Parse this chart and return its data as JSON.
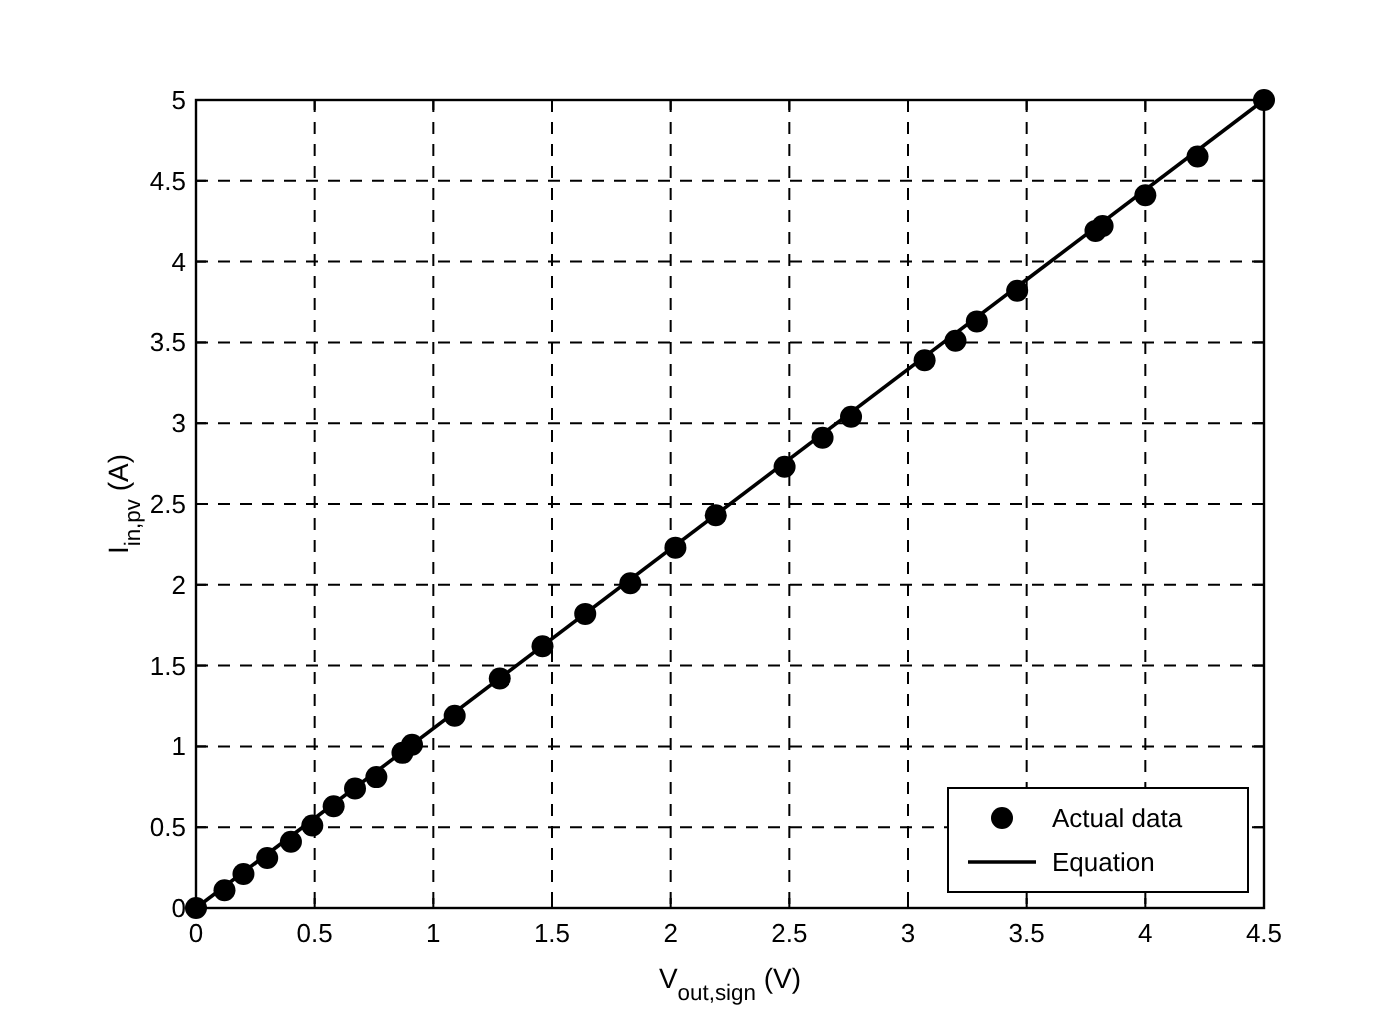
{
  "chart_data": {
    "type": "scatter",
    "xlabel": "V$_{out,sign}$ (V)",
    "ylabel": "I$_{in,pv}$ (A)",
    "xlim": [
      0,
      4.5
    ],
    "ylim": [
      0,
      5
    ],
    "xticks": [
      0,
      0.5,
      1,
      1.5,
      2,
      2.5,
      3,
      3.5,
      4,
      4.5
    ],
    "yticks": [
      0,
      0.5,
      1,
      1.5,
      2,
      2.5,
      3,
      3.5,
      4,
      4.5,
      5
    ],
    "grid": true,
    "legend": "bottom right",
    "series": [
      {
        "name": "Actual data",
        "marker": "circle",
        "color": "#000000",
        "x": [
          0,
          0.12,
          0.2,
          0.3,
          0.4,
          0.49,
          0.58,
          0.67,
          0.76,
          0.87,
          0.91,
          1.09,
          1.28,
          1.46,
          1.64,
          1.83,
          2.02,
          2.19,
          2.48,
          2.64,
          2.76,
          3.07,
          3.2,
          3.29,
          3.46,
          3.79,
          3.82,
          4,
          4.22,
          4.5
        ],
        "values": [
          0,
          0.11,
          0.21,
          0.31,
          0.41,
          0.51,
          0.63,
          0.74,
          0.81,
          0.96,
          1.01,
          1.19,
          1.42,
          1.62,
          1.82,
          2.01,
          2.23,
          2.43,
          2.73,
          2.91,
          3.04,
          3.39,
          3.51,
          3.63,
          3.82,
          4.19,
          4.22,
          4.41,
          4.65,
          5
        ]
      },
      {
        "name": "Equation",
        "type": "line",
        "line_style": "solid",
        "color": "#000000",
        "x": [
          0,
          4.5
        ],
        "values": [
          0,
          5
        ]
      }
    ]
  }
}
